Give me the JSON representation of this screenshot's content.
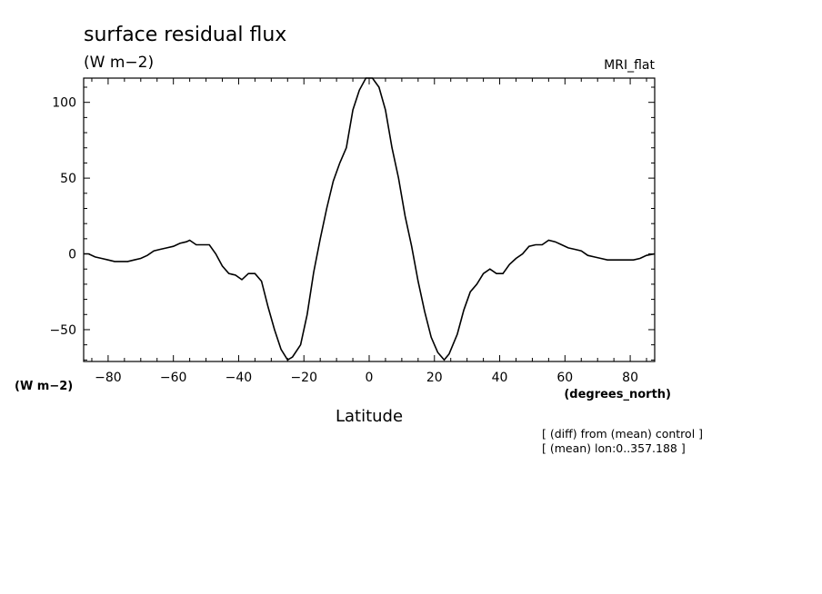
{
  "chart_data": {
    "type": "line",
    "title": "surface residual flux",
    "units_label": "(W m−2)",
    "model_label": "MRI_flat",
    "xlabel": "Latitude",
    "xunits": "(degrees_north)",
    "ylabel": "(W m−2)",
    "xlim": [
      -87.5,
      87.5
    ],
    "ylim": [
      -71,
      116
    ],
    "xticks": [
      -80,
      -60,
      -40,
      -20,
      0,
      20,
      40,
      60,
      80
    ],
    "yticks": [
      -50,
      0,
      50,
      100
    ],
    "notes": [
      "[ (diff) from (mean) control ]",
      "[ (mean) lon:0..357.188 ]"
    ],
    "series": [
      {
        "x": [
          -87.5,
          -86,
          -84,
          -82,
          -80,
          -78,
          -76,
          -74,
          -72,
          -70,
          -68,
          -66,
          -64,
          -62,
          -60,
          -58,
          -56,
          -55,
          -53,
          -51,
          -49,
          -47,
          -45,
          -43,
          -41,
          -39,
          -37,
          -35,
          -33,
          -31,
          -29,
          -27,
          -25,
          -23.5,
          -21,
          -19,
          -17,
          -15,
          -13,
          -11,
          -9,
          -7,
          -5,
          -3,
          -1,
          0,
          1,
          3,
          5,
          7,
          9,
          11,
          13,
          15,
          17,
          19,
          21,
          23,
          24.5,
          27,
          29,
          31,
          33,
          35,
          37,
          39,
          41,
          43,
          45,
          47,
          49,
          51,
          53,
          55,
          57,
          59,
          61,
          63,
          65,
          67,
          69,
          71,
          73,
          75,
          77,
          79,
          81,
          83,
          85,
          87.5
        ],
        "y": [
          0,
          0,
          -2,
          -3,
          -4,
          -5,
          -5,
          -5,
          -4,
          -3,
          -1,
          2,
          3,
          4,
          5,
          7,
          8,
          9,
          6,
          6,
          6,
          0,
          -8,
          -13,
          -14,
          -17,
          -13,
          -13,
          -18,
          -35,
          -50,
          -63,
          -70,
          -68,
          -60,
          -40,
          -12,
          10,
          30,
          48,
          60,
          70,
          95,
          108,
          116,
          116,
          116,
          110,
          95,
          70,
          50,
          25,
          5,
          -18,
          -38,
          -55,
          -65,
          -70,
          -66,
          -53,
          -37,
          -25,
          -20,
          -13,
          -10,
          -13,
          -13,
          -7,
          -3,
          0,
          5,
          6,
          6,
          9,
          8,
          6,
          4,
          3,
          2,
          -1,
          -2,
          -3,
          -4,
          -4,
          -4,
          -4,
          -4,
          -3,
          -1,
          0
        ]
      }
    ]
  }
}
